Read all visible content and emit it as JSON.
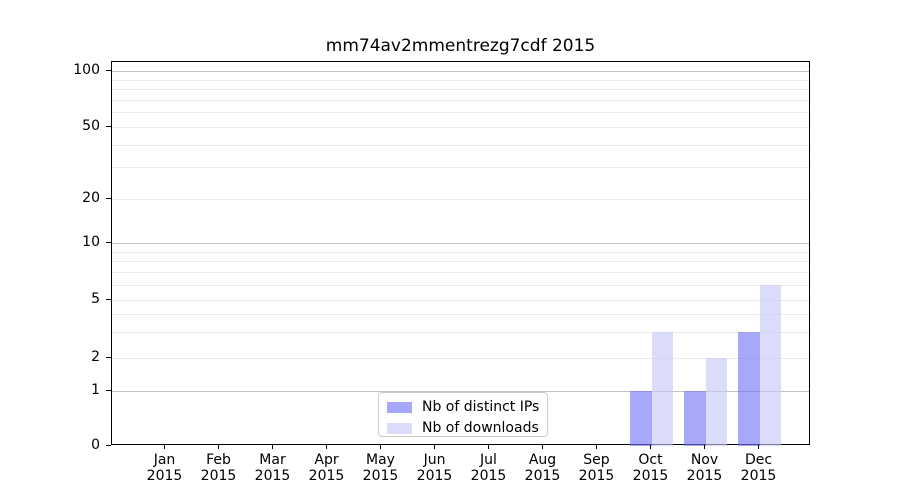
{
  "title": "mm74av2mmentrezg7cdf 2015",
  "colors": {
    "distinct_ips_fill": "rgba(117,117,247,0.63)",
    "downloads_fill": "rgba(198,198,247,0.63)",
    "distinct_ips_solid": "#a8a8f9",
    "downloads_solid": "#dbdbf9",
    "grid_major": "#c3c3c3",
    "grid_minor": "#ebebeb",
    "spine": "#000000"
  },
  "chart_data": {
    "type": "bar",
    "title": "mm74av2mmentrezg7cdf 2015",
    "categories": [
      "Jan",
      "Feb",
      "Mar",
      "Apr",
      "May",
      "Jun",
      "Jul",
      "Aug",
      "Sep",
      "Oct",
      "Nov",
      "Dec"
    ],
    "category_year": "2015",
    "series": [
      {
        "name": "Nb of distinct IPs",
        "color": "#a8a8f9",
        "values": [
          0,
          0,
          0,
          0,
          0,
          0,
          0,
          0,
          0,
          1,
          1,
          3
        ]
      },
      {
        "name": "Nb of downloads",
        "color": "#dbdbf9",
        "values": [
          0,
          0,
          0,
          0,
          0,
          0,
          0,
          0,
          0,
          3,
          2,
          6
        ]
      }
    ],
    "xlabel": "",
    "ylabel": "",
    "yscale": "symlog",
    "ylim": [
      0,
      113
    ],
    "ytick_values": [
      0,
      1,
      2,
      5,
      10,
      20,
      50,
      100
    ],
    "ytick_labels": [
      "0",
      "1",
      "2",
      "5",
      "10",
      "20",
      "50",
      "100"
    ],
    "grid": "horizontal",
    "gridline_major_values": [
      1,
      10,
      100
    ],
    "gridline_minor_values": [
      2,
      3,
      4,
      5,
      6,
      7,
      8,
      9,
      20,
      30,
      40,
      50,
      60,
      70,
      80,
      90
    ],
    "legend_position": "lower center inside"
  },
  "legend": {
    "items": [
      {
        "label": "Nb of distinct IPs",
        "color": "#a8a8f9",
        "fill": "rgba(117,117,247,0.63)"
      },
      {
        "label": "Nb of downloads",
        "color": "#dbdbf9",
        "fill": "rgba(198,198,247,0.63)"
      }
    ]
  }
}
